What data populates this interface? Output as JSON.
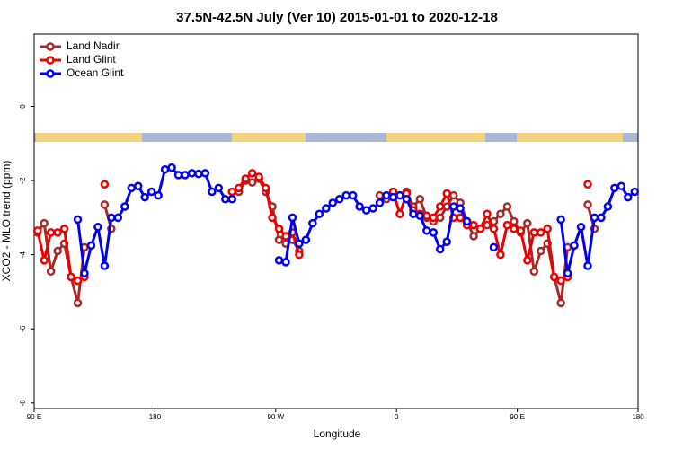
{
  "chart_data": {
    "type": "line",
    "title": "37.5N-42.5N July (Ver 10)   2015-01-01 to 2020-12-18",
    "x_label": "Longitude",
    "y_label": "XCO2 - MLO trend (ppm)",
    "xlim": [
      90,
      540
    ],
    "ylim": [
      -8.15,
      1.95
    ],
    "xticks": [
      {
        "value": 90,
        "label": "90 E"
      },
      180,
      {
        "value": 270,
        "label": "90 W"
      },
      {
        "value": 360,
        "label": "0"
      },
      {
        "value": 450,
        "label": "90 E"
      },
      {
        "value": 540,
        "label": "180"
      }
    ],
    "yticks": [
      -8,
      -6,
      -4,
      -2,
      0
    ],
    "legend": "top-left",
    "x": [
      92.5,
      97.5,
      102.5,
      107.5,
      112.5,
      117.5,
      122.5,
      127.5,
      132.5,
      137.5,
      142.5,
      147.5,
      152.5,
      157.5,
      162.5,
      167.5,
      172.5,
      177.5,
      182.5,
      187.5,
      192.5,
      197.5,
      202.5,
      207.5,
      212.5,
      217.5,
      222.5,
      227.5,
      232.5,
      237.5,
      242.5,
      247.5,
      252.5,
      257.5,
      262.5,
      267.5,
      272.5,
      277.5,
      282.5,
      287.5,
      292.5,
      297.5,
      302.5,
      307.5,
      312.5,
      317.5,
      322.5,
      327.5,
      332.5,
      337.5,
      342.5,
      347.5,
      352.5,
      357.5,
      362.5,
      367.5,
      372.5,
      377.5,
      382.5,
      387.5,
      392.5,
      397.5,
      402.5,
      407.5,
      412.5,
      417.5,
      422.5,
      427.5,
      432.5,
      437.5,
      442.5,
      447.5,
      452.5,
      457.5,
      462.5,
      467.5,
      472.5,
      477.5,
      482.5,
      487.5,
      492.5,
      497.5,
      502.5,
      507.5,
      512.5,
      517.5,
      522.5,
      527.5,
      532.5,
      537.5
    ],
    "series": [
      {
        "name": "Land Nadir",
        "color": "#a52a2a",
        "values": [
          -3.4,
          -3.15,
          -4.45,
          -3.9,
          -3.7,
          -4.6,
          -5.3,
          -3.8,
          null,
          null,
          -2.65,
          -3.3,
          null,
          null,
          null,
          null,
          null,
          null,
          null,
          null,
          null,
          null,
          null,
          null,
          null,
          null,
          null,
          null,
          null,
          null,
          -2.3,
          -2.0,
          -2.05,
          -1.95,
          -2.3,
          -2.7,
          -3.6,
          -3.7,
          -3.6,
          -3.9,
          null,
          null,
          null,
          null,
          null,
          null,
          null,
          null,
          null,
          null,
          null,
          -2.4,
          -2.5,
          -2.35,
          -2.4,
          -2.3,
          -2.7,
          -2.5,
          -3.0,
          -3.1,
          -3.0,
          -2.7,
          -2.4,
          -2.6,
          -3.1,
          -3.5,
          -3.3,
          -3.2,
          -3.1,
          -2.9,
          -2.7,
          -3.1,
          -3.4,
          -3.15,
          -4.45,
          -3.9,
          -3.7,
          -4.6,
          -5.3,
          -3.8,
          null,
          null,
          -2.65,
          -3.3,
          null,
          null,
          null,
          null,
          null,
          null
        ]
      },
      {
        "name": "Land Glint",
        "color": "#ee0000",
        "values": [
          -3.35,
          -4.15,
          -3.4,
          -3.4,
          -3.3,
          -4.6,
          -4.7,
          -4.6,
          null,
          null,
          -2.1,
          null,
          null,
          null,
          null,
          null,
          null,
          null,
          null,
          null,
          null,
          null,
          null,
          null,
          null,
          null,
          null,
          null,
          null,
          -2.3,
          -2.2,
          -1.95,
          -1.8,
          -1.9,
          -2.2,
          -3.0,
          -3.3,
          -3.5,
          -3.4,
          -4.0,
          null,
          null,
          null,
          null,
          null,
          null,
          null,
          null,
          null,
          null,
          null,
          null,
          null,
          -2.3,
          -2.9,
          -2.35,
          -2.8,
          -2.9,
          -2.95,
          -3.0,
          -2.7,
          -2.35,
          -3.0,
          -3.0,
          -3.2,
          -3.2,
          -3.3,
          -2.9,
          -3.3,
          -4.0,
          -3.2,
          -3.3,
          -3.35,
          -4.15,
          -3.4,
          -3.4,
          -3.3,
          -4.6,
          -4.7,
          -4.6,
          null,
          null,
          -2.1,
          null,
          null,
          null,
          null,
          null,
          null,
          null
        ]
      },
      {
        "name": "Ocean Glint",
        "color": "#0000ee",
        "values": [
          null,
          null,
          null,
          null,
          null,
          null,
          -3.05,
          -4.5,
          -3.75,
          -3.25,
          -4.3,
          -3.0,
          -3.0,
          -2.7,
          -2.2,
          -2.15,
          -2.45,
          -2.3,
          -2.4,
          -1.7,
          -1.65,
          -1.85,
          -1.85,
          -1.8,
          -1.82,
          -1.8,
          -2.3,
          -2.2,
          -2.5,
          -2.5,
          null,
          null,
          null,
          null,
          null,
          null,
          -4.15,
          -4.2,
          -3.0,
          -3.7,
          -3.6,
          -3.15,
          -2.9,
          -2.75,
          -2.6,
          -2.5,
          -2.4,
          -2.4,
          -2.7,
          -2.8,
          -2.75,
          -2.6,
          -2.4,
          -2.45,
          -2.4,
          -2.5,
          -2.9,
          -2.95,
          -3.35,
          -3.4,
          -3.85,
          -3.65,
          -2.7,
          -2.75,
          -3.1,
          null,
          null,
          null,
          -3.8,
          null,
          null,
          null,
          null,
          null,
          null,
          null,
          null,
          null,
          -3.05,
          -4.5,
          -3.75,
          -3.25,
          -4.3,
          -3.0,
          -3.0,
          -2.7,
          -2.2,
          -2.15,
          -2.45,
          -2.3
        ]
      }
    ]
  }
}
